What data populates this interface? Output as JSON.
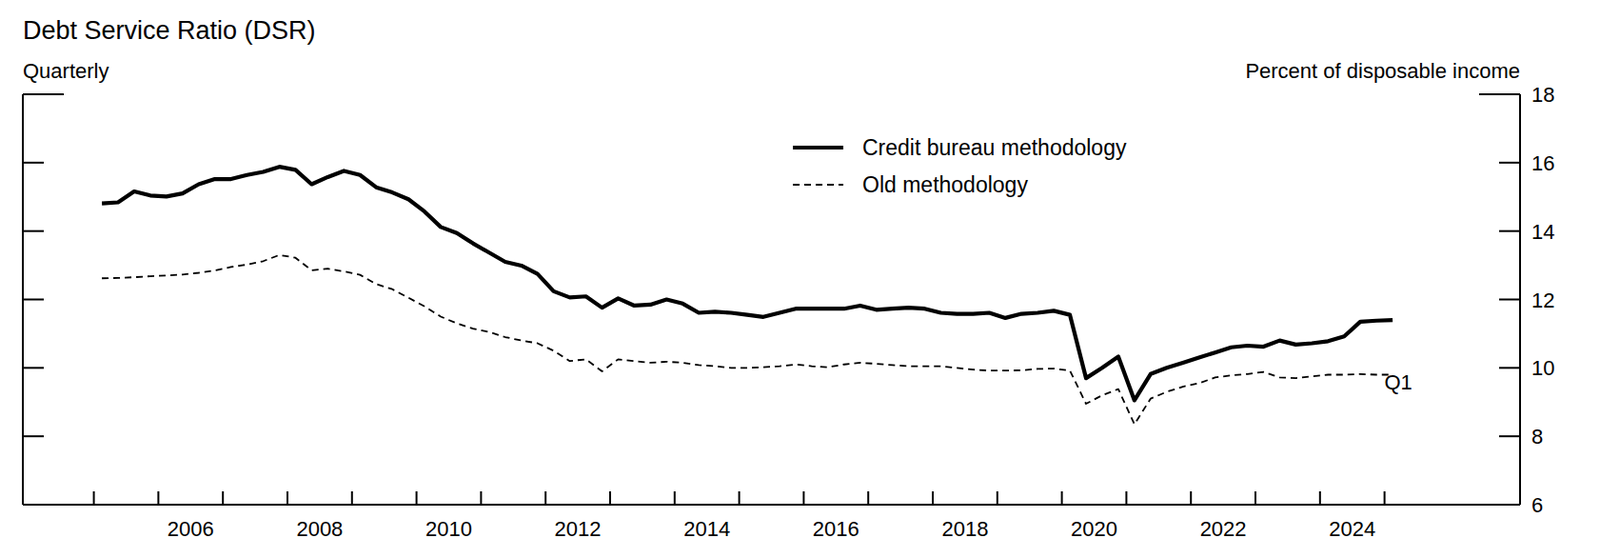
{
  "chart_data": {
    "type": "line",
    "title": "Debt Service Ratio (DSR)",
    "subtitle": "Quarterly",
    "ylabel": "Percent of disposable income",
    "annotations": [
      "Q1"
    ],
    "x": [
      2005.125,
      2005.375,
      2005.625,
      2005.875,
      2006.125,
      2006.375,
      2006.625,
      2006.875,
      2007.125,
      2007.375,
      2007.625,
      2007.875,
      2008.125,
      2008.375,
      2008.625,
      2008.875,
      2009.125,
      2009.375,
      2009.625,
      2009.875,
      2010.125,
      2010.375,
      2010.625,
      2010.875,
      2011.125,
      2011.375,
      2011.625,
      2011.875,
      2012.125,
      2012.375,
      2012.625,
      2012.875,
      2013.125,
      2013.375,
      2013.625,
      2013.875,
      2014.125,
      2014.375,
      2014.625,
      2014.875,
      2015.125,
      2015.375,
      2015.625,
      2015.875,
      2016.125,
      2016.375,
      2016.625,
      2016.875,
      2017.125,
      2017.375,
      2017.625,
      2017.875,
      2018.125,
      2018.375,
      2018.625,
      2018.875,
      2019.125,
      2019.375,
      2019.625,
      2019.875,
      2020.125,
      2020.375,
      2020.625,
      2020.875,
      2021.125,
      2021.375,
      2021.625,
      2021.875,
      2022.125,
      2022.375,
      2022.625,
      2022.875,
      2023.125,
      2023.375,
      2023.625,
      2023.875,
      2024.125,
      2024.375,
      2024.625,
      2024.875,
      2025.125
    ],
    "series": [
      {
        "name": "Credit bureau methodology",
        "color": "#000000",
        "line_style": "solid",
        "values": [
          14.81,
          14.84,
          15.16,
          15.04,
          15.01,
          15.1,
          15.37,
          15.52,
          15.52,
          15.64,
          15.73,
          15.88,
          15.79,
          15.37,
          15.58,
          15.76,
          15.64,
          15.28,
          15.13,
          14.93,
          14.57,
          14.12,
          13.94,
          13.64,
          13.37,
          13.1,
          12.99,
          12.75,
          12.24,
          12.06,
          12.09,
          11.76,
          12.03,
          11.82,
          11.85,
          12.0,
          11.88,
          11.61,
          11.64,
          11.61,
          11.55,
          11.49,
          11.61,
          11.73,
          11.73,
          11.73,
          11.73,
          11.82,
          11.7,
          11.73,
          11.76,
          11.73,
          11.61,
          11.58,
          11.58,
          11.61,
          11.46,
          11.58,
          11.61,
          11.67,
          11.55,
          9.7,
          10.0,
          10.33,
          9.05,
          9.82,
          10.0,
          10.15,
          10.3,
          10.45,
          10.6,
          10.65,
          10.62,
          10.8,
          10.68,
          10.72,
          10.78,
          10.92,
          11.35,
          11.38,
          11.4
        ]
      },
      {
        "name": "Old methodology",
        "color": "#000000",
        "line_style": "dashed",
        "values": [
          12.62,
          12.63,
          12.65,
          12.68,
          12.7,
          12.73,
          12.78,
          12.85,
          12.95,
          13.02,
          13.12,
          13.3,
          13.22,
          12.85,
          12.9,
          12.82,
          12.72,
          12.45,
          12.3,
          12.05,
          11.8,
          11.5,
          11.3,
          11.15,
          11.05,
          10.9,
          10.8,
          10.72,
          10.5,
          10.2,
          10.25,
          9.9,
          10.25,
          10.2,
          10.15,
          10.18,
          10.15,
          10.08,
          10.05,
          10.0,
          10.0,
          10.02,
          10.05,
          10.1,
          10.05,
          10.02,
          10.1,
          10.15,
          10.12,
          10.08,
          10.05,
          10.05,
          10.05,
          10.0,
          9.95,
          9.92,
          9.92,
          9.93,
          9.97,
          9.98,
          9.92,
          8.95,
          9.2,
          9.38,
          8.35,
          9.1,
          9.3,
          9.45,
          9.55,
          9.72,
          9.78,
          9.82,
          9.88,
          9.72,
          9.7,
          9.75,
          9.8,
          9.8,
          9.82,
          9.8,
          9.8
        ]
      }
    ],
    "xlim": [
      2003.9,
      2027.1
    ],
    "xticks": [
      {
        "value": 2006.5,
        "label": "2006"
      },
      {
        "value": 2008.5,
        "label": "2008"
      },
      {
        "value": 2010.5,
        "label": "2010"
      },
      {
        "value": 2012.5,
        "label": "2012"
      },
      {
        "value": 2014.5,
        "label": "2014"
      },
      {
        "value": 2016.5,
        "label": "2016"
      },
      {
        "value": 2018.5,
        "label": "2018"
      },
      {
        "value": 2020.5,
        "label": "2020"
      },
      {
        "value": 2022.5,
        "label": "2022"
      },
      {
        "value": 2024.5,
        "label": "2024"
      }
    ],
    "ylim": [
      6,
      18
    ],
    "yticks": [
      6,
      8,
      10,
      12,
      14,
      16,
      18
    ],
    "grid": false,
    "legend": "top-center"
  }
}
